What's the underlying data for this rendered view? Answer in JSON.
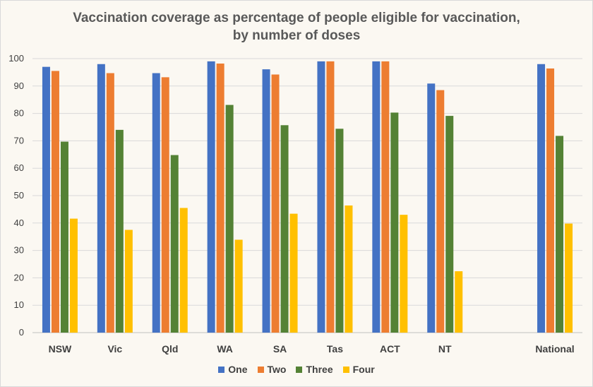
{
  "chart_data": {
    "type": "bar",
    "title_line1": "Vaccination coverage as percentage of people eligible for vaccination,",
    "title_line2": "by number of doses",
    "categories": [
      "NSW",
      "Vic",
      "Qld",
      "WA",
      "SA",
      "Tas",
      "ACT",
      "NT",
      "",
      "National"
    ],
    "series": [
      {
        "name": "One",
        "color": "#4472c4",
        "values": [
          97.0,
          98.0,
          94.7,
          99.0,
          96.1,
          99.0,
          99.0,
          90.9,
          null,
          98.0
        ]
      },
      {
        "name": "Two",
        "color": "#ed7d31",
        "values": [
          95.5,
          94.7,
          93.2,
          98.2,
          94.2,
          99.0,
          99.0,
          88.5,
          null,
          96.4
        ]
      },
      {
        "name": "Three",
        "color": "#548235",
        "values": [
          69.7,
          74.0,
          64.8,
          83.1,
          75.7,
          74.4,
          80.3,
          79.1,
          null,
          71.8
        ]
      },
      {
        "name": "Four",
        "color": "#ffc000",
        "values": [
          41.6,
          37.5,
          45.5,
          33.9,
          43.4,
          46.4,
          43.0,
          22.4,
          null,
          39.8
        ]
      }
    ],
    "ylim": [
      0,
      100
    ],
    "yticks": [
      0,
      10,
      20,
      30,
      40,
      50,
      60,
      70,
      80,
      90,
      100
    ],
    "grid": true,
    "legend_position": "bottom",
    "xlabel": "",
    "ylabel": ""
  }
}
